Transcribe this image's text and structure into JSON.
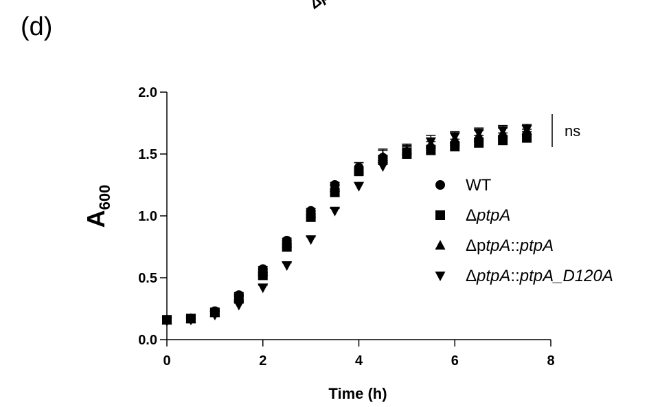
{
  "panel_label": "(d)",
  "cropped_label": "ΔptpA::",
  "chart_data": {
    "type": "scatter",
    "title": "",
    "xlabel": "Time (h)",
    "ylabel_main": "A",
    "ylabel_sub": "600",
    "xlim": [
      0,
      8
    ],
    "ylim": [
      0,
      2
    ],
    "xticks": [
      0,
      2,
      4,
      6,
      8
    ],
    "yticks": [
      "0.0",
      "0.5",
      "1.0",
      "1.5",
      "2.0"
    ],
    "legend_position": "right",
    "annotation": "ns",
    "series": [
      {
        "name": "WT",
        "legend_parts": [
          {
            "text": "WT",
            "italic": false
          }
        ],
        "marker": "circle",
        "x": [
          0,
          0.5,
          1,
          1.5,
          2,
          2.5,
          3,
          3.5,
          4,
          4.5,
          5,
          5.5,
          6,
          6.5,
          7,
          7.5
        ],
        "y": [
          0.16,
          0.17,
          0.23,
          0.36,
          0.57,
          0.8,
          1.04,
          1.25,
          1.39,
          1.47,
          1.51,
          1.55,
          1.57,
          1.6,
          1.62,
          1.65
        ],
        "err": [
          0.01,
          0.01,
          0.01,
          0.02,
          0.02,
          0.02,
          0.02,
          0.02,
          0.04,
          0.06,
          0.05,
          0.05,
          0.05,
          0.05,
          0.05,
          0.05
        ]
      },
      {
        "name": "ΔptpA",
        "legend_parts": [
          {
            "text": "Δ",
            "italic": false
          },
          {
            "text": "ptpA",
            "italic": true
          }
        ],
        "marker": "square",
        "x": [
          0,
          0.5,
          1,
          1.5,
          2,
          2.5,
          3,
          3.5,
          4,
          4.5,
          5,
          5.5,
          6,
          6.5,
          7,
          7.5
        ],
        "y": [
          0.16,
          0.17,
          0.22,
          0.33,
          0.52,
          0.75,
          0.99,
          1.19,
          1.36,
          1.45,
          1.5,
          1.53,
          1.56,
          1.59,
          1.61,
          1.63
        ],
        "err": [
          0.01,
          0.01,
          0.01,
          0.02,
          0.02,
          0.02,
          0.02,
          0.02,
          0.03,
          0.04,
          0.04,
          0.04,
          0.04,
          0.04,
          0.04,
          0.05
        ]
      },
      {
        "name": "ΔptpA::ptpA",
        "legend_parts": [
          {
            "text": "Δp",
            "italic": false
          },
          {
            "text": "tpA",
            "italic": true
          },
          {
            "text": "::",
            "italic": false
          },
          {
            "text": "ptpA",
            "italic": true
          }
        ],
        "marker": "triangle-up",
        "x": [
          0,
          0.5,
          1,
          1.5,
          2,
          2.5,
          3,
          3.5,
          4,
          4.5,
          5,
          5.5,
          6,
          6.5,
          7,
          7.5
        ],
        "y": [
          0.16,
          0.17,
          0.22,
          0.35,
          0.55,
          0.78,
          1.02,
          1.23,
          1.38,
          1.48,
          1.53,
          1.58,
          1.62,
          1.65,
          1.67,
          1.69
        ],
        "err": [
          0.01,
          0.01,
          0.01,
          0.02,
          0.02,
          0.02,
          0.02,
          0.02,
          0.05,
          0.06,
          0.05,
          0.05,
          0.05,
          0.04,
          0.04,
          0.04
        ]
      },
      {
        "name": "ΔptpA::ptpA_D120A",
        "legend_parts": [
          {
            "text": "Δ",
            "italic": false
          },
          {
            "text": "ptpA",
            "italic": true
          },
          {
            "text": "::",
            "italic": false
          },
          {
            "text": "ptpA_D120A",
            "italic": true
          }
        ],
        "marker": "triangle-down",
        "x": [
          0,
          0.5,
          1,
          1.5,
          2,
          2.5,
          3,
          3.5,
          4,
          4.5,
          5,
          5.5,
          6,
          6.5,
          7,
          7.5
        ],
        "y": [
          0.15,
          0.16,
          0.2,
          0.28,
          0.42,
          0.6,
          0.81,
          1.04,
          1.24,
          1.4,
          1.52,
          1.6,
          1.64,
          1.67,
          1.69,
          1.7
        ],
        "err": [
          0.01,
          0.01,
          0.01,
          0.02,
          0.02,
          0.02,
          0.02,
          0.02,
          0.03,
          0.04,
          0.05,
          0.05,
          0.04,
          0.04,
          0.04,
          0.04
        ]
      }
    ]
  }
}
